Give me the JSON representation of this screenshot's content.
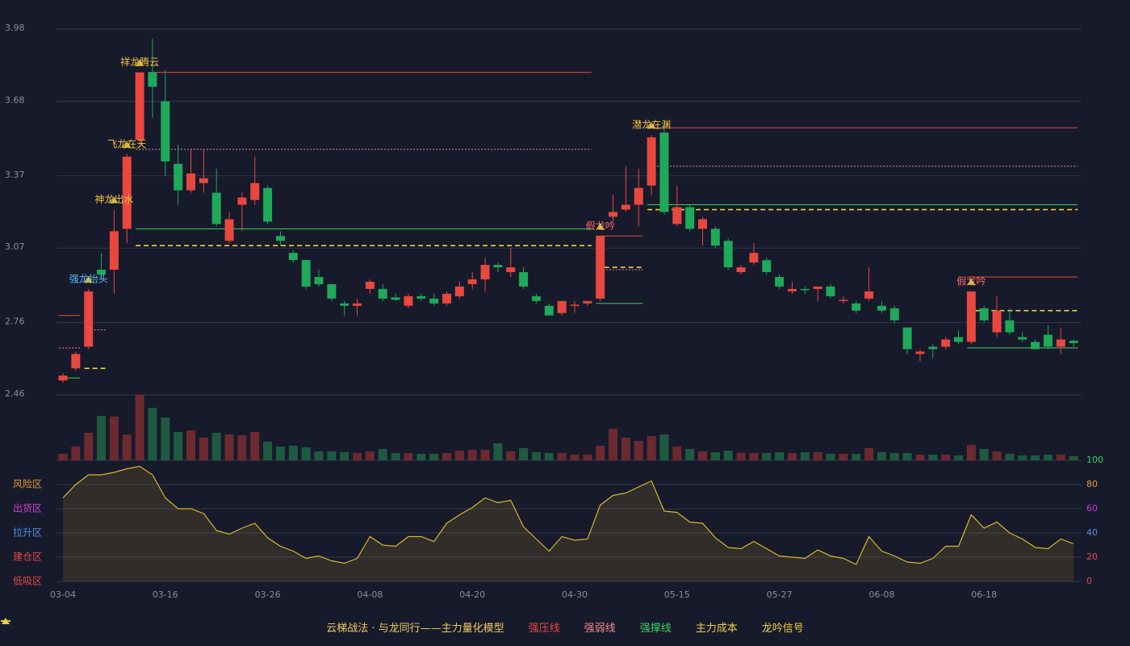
{
  "chart_data": {
    "type": "candlestick",
    "categories": [
      "03-04",
      null,
      null,
      null,
      null,
      null,
      null,
      null,
      "03-16",
      null,
      null,
      null,
      null,
      null,
      null,
      null,
      "03-26",
      null,
      null,
      null,
      null,
      null,
      null,
      null,
      "04-08",
      null,
      null,
      null,
      null,
      null,
      null,
      null,
      "04-20",
      null,
      null,
      null,
      null,
      null,
      null,
      null,
      "04-30",
      null,
      null,
      null,
      null,
      null,
      null,
      null,
      "05-15",
      null,
      null,
      null,
      null,
      null,
      null,
      null,
      "05-27",
      null,
      null,
      null,
      null,
      null,
      null,
      null,
      "06-08",
      null,
      null,
      null,
      null,
      null,
      null,
      null,
      "06-18",
      null,
      null,
      null,
      null,
      null,
      null,
      null
    ],
    "open": [
      2.52,
      2.57,
      2.66,
      2.98,
      2.98,
      3.15,
      3.52,
      3.8,
      3.68,
      3.42,
      3.31,
      3.34,
      3.3,
      3.1,
      3.25,
      3.27,
      3.32,
      3.12,
      3.05,
      3.02,
      2.95,
      2.92,
      2.84,
      2.83,
      2.9,
      2.9,
      2.865,
      2.83,
      2.87,
      2.86,
      2.84,
      2.87,
      2.92,
      2.94,
      3.0,
      2.97,
      2.97,
      2.87,
      2.83,
      2.8,
      2.83,
      2.84,
      2.86,
      3.2,
      3.23,
      3.25,
      3.33,
      3.55,
      3.17,
      3.24,
      3.15,
      3.15,
      3.1,
      2.97,
      3.01,
      3.02,
      2.95,
      2.89,
      2.9,
      2.9,
      2.91,
      2.85,
      2.84,
      2.86,
      2.83,
      2.82,
      2.74,
      2.63,
      2.66,
      2.66,
      2.7,
      2.68,
      2.82,
      2.72,
      2.77,
      2.7,
      2.68,
      2.71,
      2.66,
      2.685
    ],
    "high": [
      2.55,
      2.64,
      2.9,
      3.05,
      3.23,
      3.46,
      3.8,
      3.94,
      3.81,
      3.5,
      3.48,
      3.48,
      3.4,
      3.22,
      3.3,
      3.45,
      3.33,
      3.14,
      3.06,
      3.02,
      2.98,
      2.92,
      2.85,
      2.86,
      2.94,
      2.92,
      2.88,
      2.88,
      2.88,
      2.88,
      2.89,
      2.93,
      2.97,
      3.03,
      3.01,
      3.07,
      2.99,
      2.88,
      2.84,
      2.85,
      2.85,
      2.85,
      3.12,
      3.29,
      3.41,
      3.4,
      3.54,
      3.6,
      3.33,
      3.25,
      3.2,
      3.16,
      3.11,
      3.0,
      3.09,
      3.03,
      2.96,
      2.93,
      2.91,
      2.91,
      2.92,
      2.87,
      2.85,
      2.99,
      2.85,
      2.83,
      2.74,
      2.65,
      2.67,
      2.7,
      2.73,
      2.89,
      2.83,
      2.87,
      2.82,
      2.72,
      2.69,
      2.75,
      2.74,
      2.69
    ],
    "low": [
      2.51,
      2.56,
      2.65,
      2.94,
      2.88,
      3.09,
      3.5,
      3.61,
      3.37,
      3.25,
      3.3,
      3.3,
      3.16,
      3.09,
      3.14,
      3.25,
      3.17,
      3.08,
      3.01,
      2.9,
      2.91,
      2.85,
      2.79,
      2.79,
      2.88,
      2.85,
      2.85,
      2.82,
      2.85,
      2.83,
      2.83,
      2.86,
      2.9,
      2.89,
      2.97,
      2.95,
      2.9,
      2.84,
      2.79,
      2.79,
      2.8,
      2.83,
      2.85,
      3.18,
      3.22,
      3.16,
      3.29,
      3.21,
      3.16,
      3.14,
      3.08,
      3.07,
      2.98,
      2.96,
      3.0,
      2.96,
      2.9,
      2.88,
      2.88,
      2.85,
      2.86,
      2.84,
      2.8,
      2.85,
      2.8,
      2.76,
      2.63,
      2.6,
      2.61,
      2.65,
      2.67,
      2.67,
      2.76,
      2.7,
      2.71,
      2.68,
      2.65,
      2.65,
      2.63,
      2.66
    ],
    "close": [
      2.54,
      2.63,
      2.89,
      2.96,
      3.14,
      3.45,
      3.8,
      3.74,
      3.43,
      3.31,
      3.38,
      3.36,
      3.17,
      3.19,
      3.28,
      3.34,
      3.18,
      3.1,
      3.02,
      2.91,
      2.92,
      2.86,
      2.83,
      2.84,
      2.93,
      2.86,
      2.855,
      2.87,
      2.86,
      2.84,
      2.88,
      2.91,
      2.94,
      3.0,
      2.99,
      2.99,
      2.91,
      2.85,
      2.79,
      2.85,
      2.835,
      2.85,
      3.12,
      3.22,
      3.25,
      3.32,
      3.53,
      3.22,
      3.24,
      3.15,
      3.19,
      3.08,
      2.99,
      2.99,
      3.05,
      2.97,
      2.91,
      2.9,
      2.895,
      2.91,
      2.87,
      2.855,
      2.81,
      2.89,
      2.81,
      2.77,
      2.65,
      2.64,
      2.65,
      2.69,
      2.68,
      2.89,
      2.77,
      2.81,
      2.72,
      2.69,
      2.65,
      2.66,
      2.69,
      2.675
    ],
    "volume": [
      8,
      17,
      34,
      55,
      54,
      32,
      81,
      65,
      53,
      35,
      37,
      28,
      34,
      32,
      31,
      35,
      23,
      17,
      18,
      16,
      11,
      11,
      10,
      9,
      11,
      14,
      9,
      9,
      8,
      8,
      9,
      12,
      13,
      13,
      21,
      11,
      15,
      10,
      9,
      9,
      7,
      7,
      18,
      39,
      28,
      24,
      30,
      32,
      17,
      14,
      11,
      10,
      12,
      9,
      9,
      9,
      10,
      9,
      10,
      10,
      8,
      8,
      8,
      15,
      10,
      9,
      9,
      7,
      7,
      7,
      6,
      19,
      14,
      11,
      8,
      6,
      6,
      7,
      7,
      5
    ],
    "indicator": [
      69,
      80,
      88,
      88,
      90,
      93,
      95,
      88,
      69,
      60,
      60,
      56,
      42,
      39,
      44,
      48,
      36,
      29,
      25,
      19,
      21,
      17,
      15,
      19,
      37,
      30,
      29,
      37,
      37,
      33,
      48,
      55,
      61,
      69,
      65,
      67,
      45,
      35,
      25,
      37,
      34,
      35,
      63,
      71,
      73,
      78,
      83,
      58,
      57,
      49,
      48,
      36,
      28,
      27,
      33,
      27,
      21,
      20,
      19,
      26,
      21,
      19,
      14,
      37,
      25,
      21,
      16,
      15,
      19,
      29,
      29,
      55,
      44,
      49,
      40,
      35,
      28,
      27,
      35,
      31
    ],
    "up_color": "#e8483f",
    "down_color": "#1fa95a",
    "volume_up_color": "#6b2a30",
    "volume_down_color": "#1e5a3f",
    "indicator_color": "#d9b52a",
    "ylim": [
      2.46,
      3.98
    ],
    "yticks": [
      2.46,
      2.76,
      3.07,
      3.37,
      3.68,
      3.98
    ],
    "y2lim": [
      0,
      100
    ],
    "y2ticks": [
      {
        "value": 0,
        "color": "#e04848"
      },
      {
        "value": 20,
        "color": "#e04848"
      },
      {
        "value": 40,
        "color": "#4a8fe0"
      },
      {
        "value": 60,
        "color": "#c040d0"
      },
      {
        "value": 80,
        "color": "#e89a30"
      },
      {
        "value": 100,
        "color": "#36d060"
      }
    ],
    "zones": [
      {
        "label": "风险区",
        "value": 80,
        "color": "#e89a30"
      },
      {
        "label": "出货区",
        "value": 60,
        "color": "#d040d8"
      },
      {
        "label": "拉升区",
        "value": 40,
        "color": "#4a8fe0"
      },
      {
        "label": "建仓区",
        "value": 20,
        "color": "#e04848"
      },
      {
        "label": "低吸区",
        "value": 0,
        "color": "#e04848"
      }
    ],
    "lines": [
      {
        "value": 2.79,
        "start": 0,
        "end": 1,
        "color": "#e8483f",
        "style": "solid"
      },
      {
        "value": 2.655,
        "start": 0,
        "end": 1,
        "color": "#f08a8a",
        "style": "dotted"
      },
      {
        "value": 2.53,
        "start": 0,
        "end": 1,
        "color": "#3cd060",
        "style": "solid"
      },
      {
        "value": 2.73,
        "start": 2,
        "end": 3,
        "color": "#f08a8a",
        "style": "dotted"
      },
      {
        "value": 2.57,
        "start": 2,
        "end": 3,
        "color": "#f0d040",
        "style": "dashed"
      },
      {
        "value": 3.8,
        "start": 7,
        "end": 41,
        "color": "#e8483f",
        "style": "solid"
      },
      {
        "value": 3.48,
        "start": 6,
        "end": 41,
        "color": "#f08a8a",
        "style": "dotted"
      },
      {
        "value": 3.15,
        "start": 6,
        "end": 41,
        "color": "#3cd060",
        "style": "solid"
      },
      {
        "value": 3.08,
        "start": 6,
        "end": 41,
        "color": "#f0d040",
        "style": "dashed"
      },
      {
        "value": 3.12,
        "start": 42,
        "end": 45,
        "color": "#e8483f",
        "style": "solid"
      },
      {
        "value": 2.98,
        "start": 42,
        "end": 45,
        "color": "#f08a8a",
        "style": "dotted"
      },
      {
        "value": 2.99,
        "start": 42,
        "end": 45,
        "color": "#f0d040",
        "style": "dashed"
      },
      {
        "value": 2.84,
        "start": 42,
        "end": 45,
        "color": "#3cd060",
        "style": "solid"
      },
      {
        "value": 3.57,
        "start": 46,
        "end": 79,
        "color": "#e8483f",
        "style": "solid"
      },
      {
        "value": 3.41,
        "start": 46,
        "end": 79,
        "color": "#f08a8a",
        "style": "dotted"
      },
      {
        "value": 3.25,
        "start": 46,
        "end": 79,
        "color": "#3cd060",
        "style": "solid"
      },
      {
        "value": 3.23,
        "start": 46,
        "end": 79,
        "color": "#f0d040",
        "style": "dashed"
      },
      {
        "value": 2.95,
        "start": 71,
        "end": 79,
        "color": "#e8483f",
        "style": "solid"
      },
      {
        "value": 2.81,
        "start": 71,
        "end": 79,
        "color": "#f0d040",
        "style": "dashed"
      },
      {
        "value": 2.655,
        "start": 71,
        "end": 79,
        "color": "#3cd060",
        "style": "solid"
      }
    ],
    "signals": [
      {
        "label": "强龙抬头",
        "index": 2,
        "color": "#5ab8ff"
      },
      {
        "label": "神龙出水",
        "index": 4,
        "color": "#f2c040"
      },
      {
        "label": "飞龙在天",
        "index": 5,
        "color": "#f2c040"
      },
      {
        "label": "祥龙腾云",
        "index": 6,
        "color": "#f2c040"
      },
      {
        "label": "假龙吟",
        "index": 42,
        "color": "#ff6a6a"
      },
      {
        "label": "潜龙在渊",
        "index": 46,
        "color": "#f2c040"
      },
      {
        "label": "假龙吟",
        "index": 71,
        "color": "#ff6a6a"
      }
    ],
    "legend_title": "云梯战法 · 与龙同行——主力量化模型",
    "legend": [
      {
        "name": "强压线",
        "color": "#e8483f",
        "style": "solid"
      },
      {
        "name": "强弱线",
        "color": "#f08a8a",
        "style": "dotted"
      },
      {
        "name": "强撑线",
        "color": "#3cd060",
        "style": "solid"
      },
      {
        "name": "主力成本",
        "color": "#f0d040",
        "style": "dashed"
      },
      {
        "name": "龙吟信号",
        "color": "#f0d040",
        "style": "triangle"
      }
    ]
  }
}
